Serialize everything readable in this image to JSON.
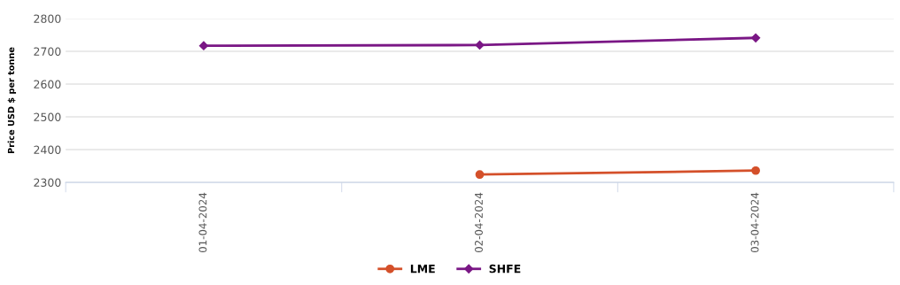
{
  "chart_data": {
    "type": "line",
    "ylabel": "Price USD $ per tonne",
    "categories": [
      "01-04-2024",
      "02-04-2024",
      "03-04-2024"
    ],
    "series": [
      {
        "name": "LME",
        "color": "#d4502a",
        "marker": "circle",
        "values": [
          null,
          2324,
          2336
        ]
      },
      {
        "name": "SHFE",
        "color": "#7a1785",
        "marker": "diamond",
        "values": [
          2717,
          2719,
          2741
        ]
      }
    ],
    "ylim": [
      2300,
      2800
    ],
    "yticks": [
      2300,
      2400,
      2500,
      2600,
      2700,
      2800
    ],
    "grid": "y",
    "legend": "bottom",
    "line_style": "solid"
  }
}
